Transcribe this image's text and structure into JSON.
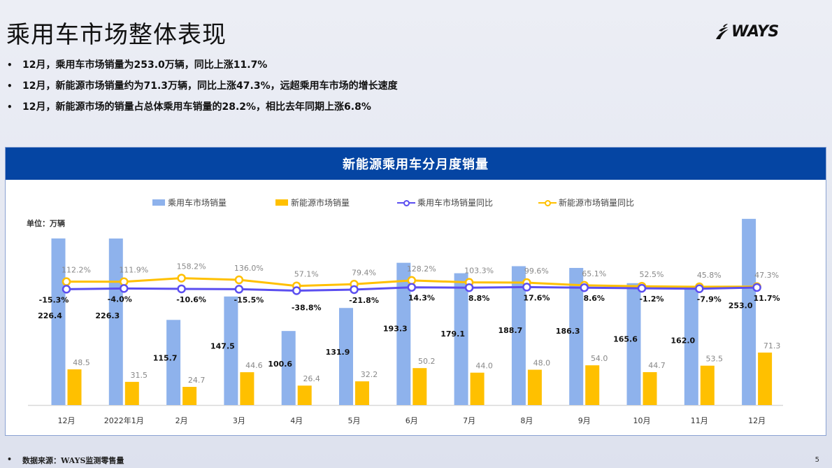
{
  "page": {
    "title": "乘用车市场整体表现",
    "logo_text": "WAYS",
    "bullets": [
      "12月，乘用车市场销量为253.0万辆，同比上涨11.7%",
      "12月，新能源市场销量约为71.3万辆，同比上涨47.3%，远超乘用车市场的增长速度",
      "12月，新能源市场的销量占总体乘用车销量的28.2%，相比去年同期上涨6.8%"
    ],
    "footer_note": "数据来源：WAYS监测零售量",
    "page_number": "5"
  },
  "chart": {
    "header": "新能源乘用车分月度销量",
    "unit_label": "单位：万辆",
    "legend": [
      {
        "label": "乘用车市场销量",
        "kind": "bar",
        "color": "#8eb2ec"
      },
      {
        "label": "新能源市场销量",
        "kind": "bar",
        "color": "#ffc000"
      },
      {
        "label": "乘用车市场销量同比",
        "kind": "line",
        "color": "#5b4ef0"
      },
      {
        "label": "新能源市场销量同比",
        "kind": "line",
        "color": "#ffc000"
      }
    ]
  },
  "chart_data": {
    "type": "bar",
    "title": "新能源乘用车分月度销量",
    "xlabel": "",
    "ylabel": "单位：万辆",
    "categories": [
      "12月",
      "2022年1月",
      "2月",
      "3月",
      "4月",
      "5月",
      "6月",
      "7月",
      "8月",
      "9月",
      "10月",
      "11月",
      "12月"
    ],
    "series": [
      {
        "name": "乘用车市场销量",
        "type": "bar",
        "color": "#8eb2ec",
        "values": [
          226.4,
          226.3,
          115.7,
          147.5,
          100.6,
          131.9,
          193.3,
          179.1,
          188.7,
          186.3,
          165.6,
          162.0,
          253.0
        ]
      },
      {
        "name": "新能源市场销量",
        "type": "bar",
        "color": "#ffc000",
        "values": [
          48.5,
          31.5,
          24.7,
          44.6,
          26.4,
          32.2,
          50.2,
          44.0,
          48.0,
          54.0,
          44.7,
          53.5,
          71.3
        ]
      },
      {
        "name": "乘用车市场销量同比",
        "type": "line",
        "unit": "%",
        "color": "#5b4ef0",
        "values": [
          -15.3,
          -4.0,
          -10.6,
          -15.5,
          -38.8,
          -21.8,
          14.3,
          8.8,
          17.6,
          8.6,
          -1.2,
          -7.9,
          11.7
        ]
      },
      {
        "name": "新能源市场销量同比",
        "type": "line",
        "unit": "%",
        "color": "#ffc000",
        "values": [
          112.2,
          111.9,
          158.2,
          136.0,
          57.1,
          79.4,
          128.2,
          103.3,
          99.6,
          65.1,
          52.5,
          45.8,
          47.3
        ]
      }
    ],
    "grid": false,
    "legend_position": "top"
  }
}
